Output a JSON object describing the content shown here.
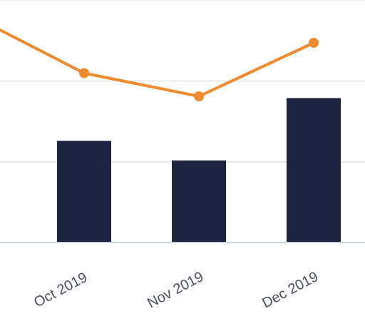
{
  "chart_data": {
    "type": "bar",
    "categories": [
      "Oct 2019",
      "Nov 2019",
      "Dec 2019"
    ],
    "series": [
      {
        "type": "bar",
        "values": [
          57,
          46,
          81
        ]
      },
      {
        "type": "line",
        "values": [
          95,
          82,
          112
        ]
      }
    ],
    "ylim": [
      0,
      136
    ],
    "grid": true,
    "colors": {
      "bar": "#1e2342",
      "line": "#ef8a2e",
      "grid": "#e3e3e3",
      "axis": "#c9d1df"
    }
  }
}
